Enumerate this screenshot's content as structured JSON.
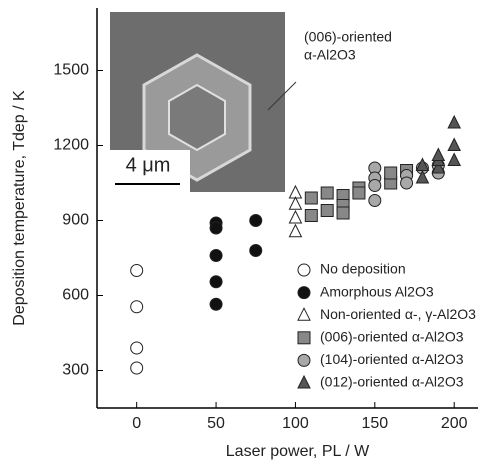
{
  "chart_data": {
    "type": "scatter",
    "xlabel": "Laser power, PL / W",
    "ylabel": "Deposition temperature, Tdep / K",
    "xlim": [
      -25,
      215
    ],
    "ylim": [
      150,
      1750
    ],
    "xticks": [
      0,
      50,
      100,
      150,
      200
    ],
    "yticks": [
      300,
      600,
      900,
      1200,
      1500
    ],
    "inset_scale": "4 μm",
    "annotation": [
      "(006)-oriented",
      "α-Al2O3"
    ],
    "series": [
      {
        "name": "No deposition",
        "marker": "circle",
        "color": "#ffffff",
        "x": [
          0,
          0,
          0,
          0
        ],
        "values": [
          700,
          555,
          390,
          310
        ]
      },
      {
        "name": "Amorphous Al2O3",
        "marker": "circle",
        "color": "#111111",
        "x": [
          50,
          50,
          50,
          50,
          50,
          75,
          75
        ],
        "values": [
          890,
          870,
          760,
          655,
          565,
          900,
          780
        ]
      },
      {
        "name": "Non-oriented α-, γ-Al2O3",
        "marker": "triangle",
        "color": "#ffffff",
        "x": [
          100,
          100,
          100,
          100
        ],
        "values": [
          1010,
          965,
          910,
          855
        ]
      },
      {
        "name": "(006)-oriented α-Al2O3",
        "marker": "square",
        "color": "#888888",
        "x": [
          110,
          110,
          120,
          120,
          130,
          130,
          130,
          140,
          140,
          160,
          160,
          170
        ],
        "values": [
          990,
          920,
          1010,
          940,
          1000,
          960,
          930,
          1030,
          1010,
          1050,
          1090,
          1100
        ]
      },
      {
        "name": "(104)-oriented α-Al2O3",
        "marker": "circle",
        "color": "#a8a8a8",
        "x": [
          150,
          150,
          150,
          150,
          170,
          170,
          180,
          190,
          190
        ],
        "values": [
          1110,
          1070,
          1040,
          980,
          1080,
          1050,
          1110,
          1120,
          1090
        ]
      },
      {
        "name": "(012)-oriented α-Al2O3",
        "marker": "triangle",
        "color": "#555555",
        "x": [
          180,
          180,
          190,
          190,
          190,
          200,
          200,
          200
        ],
        "values": [
          1070,
          1120,
          1110,
          1140,
          1160,
          1290,
          1200,
          1140
        ]
      }
    ]
  }
}
